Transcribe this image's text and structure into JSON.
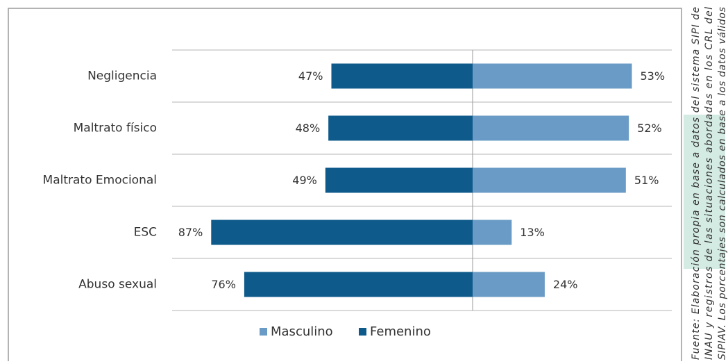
{
  "chart_data": {
    "type": "bar",
    "categories": [
      "Negligencia",
      "Maltrato físico",
      "Maltrato Emocional",
      "ESC",
      "Abuso sexual"
    ],
    "series": [
      {
        "name": "Masculino",
        "color": "#6a9bc6",
        "side": "right",
        "values": [
          53,
          52,
          51,
          13,
          24
        ],
        "value_labels": [
          "53%",
          "52%",
          "51%",
          "13%",
          "24%"
        ]
      },
      {
        "name": "Femenino",
        "color": "#0d5a8b",
        "side": "left",
        "values": [
          47,
          48,
          49,
          87,
          76
        ],
        "value_labels": [
          "47%",
          "48%",
          "49%",
          "87%",
          "76%"
        ]
      }
    ],
    "legend": "bottom",
    "note": [
      "Fuente: Elaboración propia en base a datos del sistema SIPI de",
      "INAU y registros de las situaciones abordadas en los CRL del",
      "SIPIAV. Los porcentajes son calculados en base a los datos válidos"
    ]
  }
}
